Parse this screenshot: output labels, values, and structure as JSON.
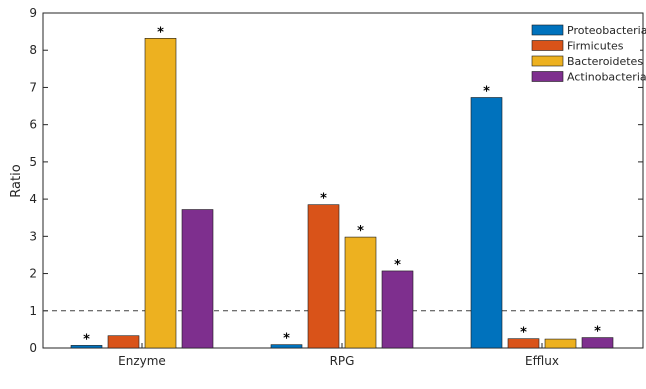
{
  "chart_data": {
    "type": "bar",
    "categories": [
      "Enzyme",
      "RPG",
      "Efflux"
    ],
    "series": [
      {
        "name": "Proteobacteria",
        "values": [
          0.07,
          0.09,
          6.73
        ],
        "color": "#0072BD",
        "marked": [
          true,
          true,
          true
        ]
      },
      {
        "name": "Firmicutes",
        "values": [
          0.33,
          3.85,
          0.25
        ],
        "color": "#D95319",
        "marked": [
          false,
          true,
          true
        ]
      },
      {
        "name": "Bacteroidetes",
        "values": [
          8.32,
          2.98,
          0.24
        ],
        "color": "#EDB120",
        "marked": [
          true,
          true,
          false
        ]
      },
      {
        "name": "Actinobacteria",
        "values": [
          3.72,
          2.07,
          0.28
        ],
        "color": "#7E2F8E",
        "marked": [
          false,
          true,
          true
        ]
      }
    ],
    "marker_symbol": "*",
    "reference_line": {
      "y": 1,
      "style": "dashed"
    },
    "ylabel": "Ratio",
    "xlabel": "",
    "title": "",
    "ylim": [
      0,
      9
    ],
    "yticks": [
      0,
      1,
      2,
      3,
      4,
      5,
      6,
      7,
      8,
      9
    ],
    "grid": false,
    "legend_position": "top-right"
  }
}
